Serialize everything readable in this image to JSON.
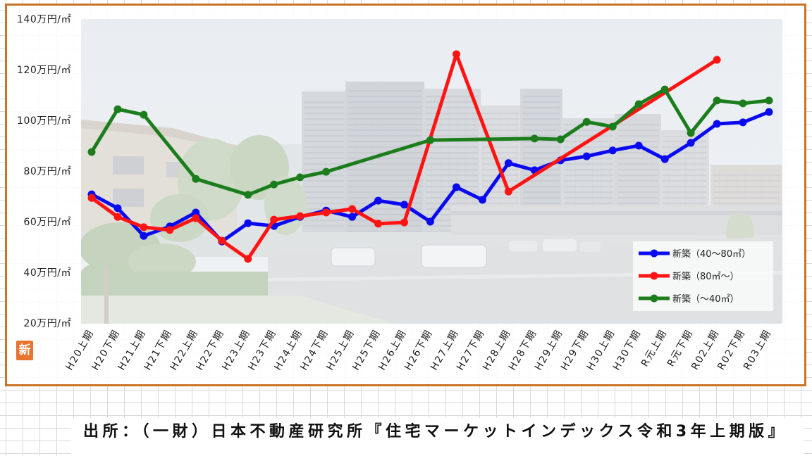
{
  "chart_data": {
    "type": "line",
    "categories": [
      "H20上期",
      "H20下期",
      "H21上期",
      "H21下期",
      "H22上期",
      "H22下期",
      "H23上期",
      "H23下期",
      "H24上期",
      "H24下期",
      "H25上期",
      "H25下期",
      "H26上期",
      "H26下期",
      "H27上期",
      "H27下期",
      "H28上期",
      "H28下期",
      "H29上期",
      "H29下期",
      "H30上期",
      "H30下期",
      "R元上期",
      "R元下期",
      "R02上期",
      "R02下期",
      "R03上期"
    ],
    "series": [
      {
        "name": "新築（40～80㎡）",
        "color": "#0a0af0",
        "values": [
          70.8,
          65.3,
          54.4,
          58.1,
          63.6,
          52.2,
          59.4,
          58.3,
          61.9,
          64.4,
          61.9,
          68.3,
          66.7,
          60.0,
          73.6,
          68.6,
          83.1,
          80.3,
          84.2,
          85.8,
          88.1,
          90.0,
          84.7,
          91.1,
          98.6,
          99.2,
          103.3
        ]
      },
      {
        "name": "新築（80㎡～）",
        "color": "#ff1414",
        "values": [
          69.4,
          61.9,
          57.8,
          56.7,
          61.4,
          52.5,
          45.3,
          60.8,
          62.2,
          63.6,
          65.0,
          59.2,
          59.7,
          null,
          126.1,
          null,
          71.9,
          null,
          null,
          null,
          null,
          null,
          null,
          null,
          123.9,
          null,
          null
        ]
      },
      {
        "name": "新築（～40㎡）",
        "color": "#1b7d1b",
        "values": [
          87.5,
          104.4,
          102.2,
          null,
          76.9,
          null,
          70.6,
          74.7,
          77.5,
          79.7,
          null,
          null,
          null,
          92.2,
          null,
          null,
          null,
          92.8,
          92.5,
          99.4,
          97.5,
          106.4,
          112.2,
          95.0,
          107.8,
          106.7,
          107.8
        ]
      }
    ],
    "y_ticks": [
      {
        "value": 140,
        "label": "140万円/㎡"
      },
      {
        "value": 120,
        "label": "120万円/㎡"
      },
      {
        "value": 100,
        "label": "100万円/㎡"
      },
      {
        "value": 80,
        "label": "80万円/㎡"
      },
      {
        "value": 60,
        "label": "60万円/㎡"
      },
      {
        "value": 40,
        "label": "40万円/㎡"
      },
      {
        "value": 20,
        "label": "20万円/㎡"
      }
    ],
    "ylim": [
      20,
      140
    ],
    "grid": false,
    "legend_position": "bottom-right"
  },
  "badge": {
    "label": "新",
    "color": "#e8742f"
  },
  "source_note": "出所：（一財）日本不動産研究所『住宅マーケットインデックス令和3年上期版』",
  "frame_color": "#c97428"
}
